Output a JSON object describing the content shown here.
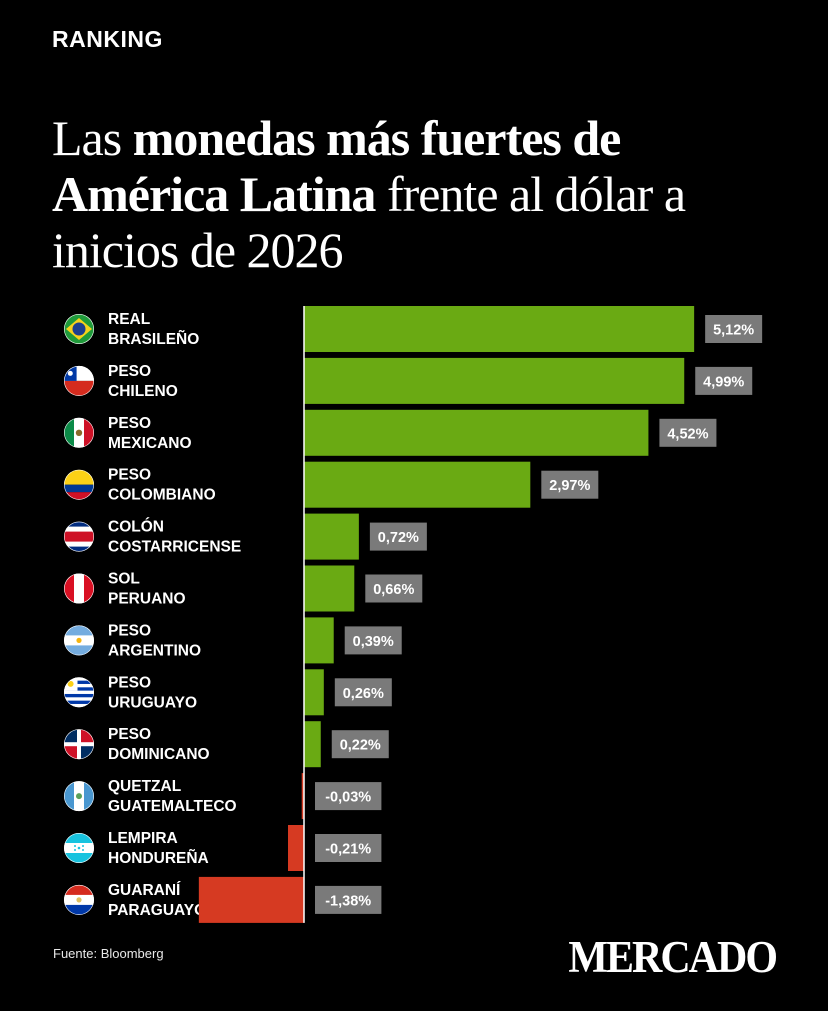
{
  "kicker": "RANKING",
  "title": {
    "part1": "Las ",
    "part2_bold": "monedas más fuertes de América Latina",
    "part3": " frente al dólar a inicios de 2026"
  },
  "source": "Fuente: Bloomberg",
  "brand": "MERCADO",
  "colors": {
    "positive": "#6aaa13",
    "negative": "#d63a22",
    "label_box": "#7a7a7a",
    "background": "#000000"
  },
  "chart_data": {
    "type": "bar",
    "orientation": "horizontal",
    "xlim": [
      -1.38,
      5.12
    ],
    "grid": false,
    "categories": [
      [
        "REAL",
        "BRASILEÑO"
      ],
      [
        "PESO",
        "CHILENO"
      ],
      [
        "PESO",
        "MEXICANO"
      ],
      [
        "PESO",
        "COLOMBIANO"
      ],
      [
        "COLÓN",
        "COSTARRICENSE"
      ],
      [
        "SOL",
        "PERUANO"
      ],
      [
        "PESO",
        "ARGENTINO"
      ],
      [
        "PESO",
        "URUGUAYO"
      ],
      [
        "PESO",
        "DOMINICANO"
      ],
      [
        "QUETZAL",
        "GUATEMALTECO"
      ],
      [
        "LEMPIRA",
        "HONDUREÑA"
      ],
      [
        "GUARANÍ",
        "PARAGUAYO"
      ]
    ],
    "values": [
      5.12,
      4.99,
      4.52,
      2.97,
      0.72,
      0.66,
      0.39,
      0.26,
      0.22,
      -0.03,
      -0.21,
      -1.38
    ],
    "value_labels": [
      "5,12%",
      "4,99%",
      "4,52%",
      "2,97%",
      "0,72%",
      "0,66%",
      "0,39%",
      "0,26%",
      "0,22%",
      "-0,03%",
      "-0,21%",
      "-1,38%"
    ],
    "flags": [
      "brazil-flag",
      "chile-flag",
      "mexico-flag",
      "colombia-flag",
      "costa-rica-flag",
      "peru-flag",
      "argentina-flag",
      "uruguay-flag",
      "dominican-republic-flag",
      "guatemala-flag",
      "honduras-flag",
      "paraguay-flag"
    ]
  }
}
